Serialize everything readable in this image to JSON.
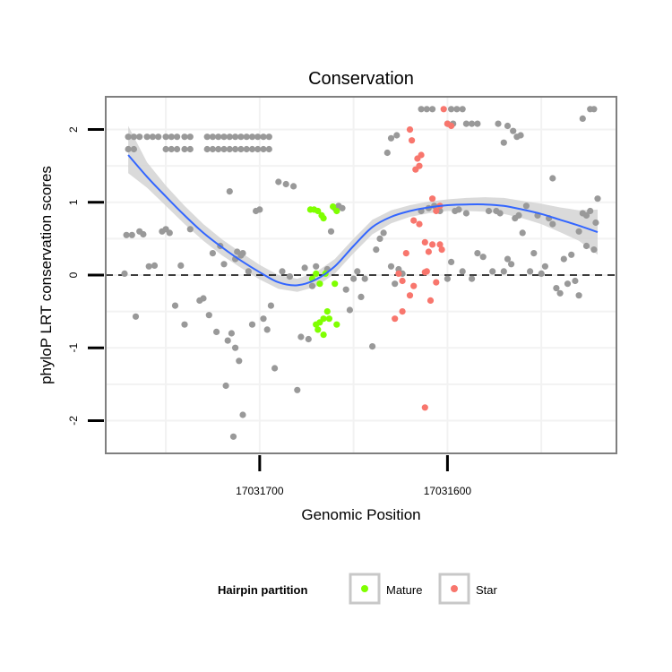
{
  "chart_data": {
    "type": "scatter",
    "title": "Conservation",
    "xlabel": "Genomic Position",
    "ylabel": "phyloP LRT conservation scores",
    "x_reversed": true,
    "xlim": [
      17031782,
      17031510
    ],
    "ylim": [
      -2.45,
      2.45
    ],
    "x_ticks": [
      {
        "value": 17031700,
        "label": "17031700"
      },
      {
        "value": 17031600,
        "label": "17031600"
      }
    ],
    "y_ticks": [
      {
        "value": -2,
        "label": "-2"
      },
      {
        "value": -1,
        "label": "-1"
      },
      {
        "value": 0,
        "label": "0"
      },
      {
        "value": 1,
        "label": "1"
      },
      {
        "value": 2,
        "label": "2"
      }
    ],
    "grid": true,
    "reference_line": {
      "y": 0,
      "style": "dashed"
    },
    "colors": {
      "other": "#999999",
      "Mature": "#7FFF00",
      "Star": "#F8766D",
      "smooth": "#3366FF",
      "band": "#D3D3D3",
      "panel_border": "#7F7F7F",
      "grid": "#F2F2F2"
    },
    "legend": {
      "title": "Hairpin partition",
      "position": "bottom",
      "entries": [
        {
          "name": "Mature",
          "color": "#7FFF00"
        },
        {
          "name": "Star",
          "color": "#F8766D"
        }
      ]
    },
    "smooth": {
      "x": [
        17031770,
        17031760,
        17031750,
        17031740,
        17031730,
        17031720,
        17031710,
        17031700,
        17031690,
        17031680,
        17031670,
        17031660,
        17031650,
        17031640,
        17031630,
        17031620,
        17031610,
        17031600,
        17031590,
        17031580,
        17031570,
        17031560,
        17031550,
        17031540,
        17031530,
        17031520
      ],
      "y": [
        1.65,
        1.35,
        1.08,
        0.82,
        0.58,
        0.38,
        0.2,
        0.04,
        -0.1,
        -0.14,
        -0.06,
        0.12,
        0.4,
        0.66,
        0.8,
        0.88,
        0.93,
        0.96,
        0.97,
        0.97,
        0.95,
        0.9,
        0.84,
        0.76,
        0.68,
        0.59
      ],
      "lower": [
        1.4,
        1.2,
        0.95,
        0.7,
        0.47,
        0.27,
        0.1,
        -0.06,
        -0.19,
        -0.23,
        -0.16,
        0.02,
        0.3,
        0.56,
        0.71,
        0.8,
        0.85,
        0.88,
        0.88,
        0.87,
        0.84,
        0.78,
        0.7,
        0.59,
        0.47,
        0.28
      ],
      "upper": [
        2.05,
        1.55,
        1.23,
        0.95,
        0.7,
        0.49,
        0.31,
        0.14,
        0.0,
        -0.05,
        0.04,
        0.22,
        0.5,
        0.76,
        0.89,
        0.96,
        1.01,
        1.04,
        1.06,
        1.07,
        1.06,
        1.02,
        0.98,
        0.93,
        0.89,
        0.9
      ]
    },
    "series": [
      {
        "name": "",
        "group": "other",
        "points": [
          [
            17031770,
            1.9
          ],
          [
            17031767,
            1.9
          ],
          [
            17031764,
            1.9
          ],
          [
            17031760,
            1.9
          ],
          [
            17031757,
            1.9
          ],
          [
            17031754,
            1.9
          ],
          [
            17031750,
            1.9
          ],
          [
            17031747,
            1.9
          ],
          [
            17031744,
            1.9
          ],
          [
            17031740,
            1.9
          ],
          [
            17031737,
            1.9
          ],
          [
            17031770,
            1.73
          ],
          [
            17031767,
            1.73
          ],
          [
            17031750,
            1.73
          ],
          [
            17031747,
            1.73
          ],
          [
            17031744,
            1.73
          ],
          [
            17031740,
            1.73
          ],
          [
            17031737,
            1.73
          ],
          [
            17031728,
            1.9
          ],
          [
            17031725,
            1.9
          ],
          [
            17031722,
            1.9
          ],
          [
            17031719,
            1.9
          ],
          [
            17031716,
            1.9
          ],
          [
            17031713,
            1.9
          ],
          [
            17031710,
            1.9
          ],
          [
            17031707,
            1.9
          ],
          [
            17031704,
            1.9
          ],
          [
            17031701,
            1.9
          ],
          [
            17031698,
            1.9
          ],
          [
            17031695,
            1.9
          ],
          [
            17031728,
            1.73
          ],
          [
            17031725,
            1.73
          ],
          [
            17031722,
            1.73
          ],
          [
            17031719,
            1.73
          ],
          [
            17031716,
            1.73
          ],
          [
            17031713,
            1.73
          ],
          [
            17031710,
            1.73
          ],
          [
            17031707,
            1.73
          ],
          [
            17031704,
            1.73
          ],
          [
            17031701,
            1.73
          ],
          [
            17031698,
            1.73
          ],
          [
            17031695,
            1.73
          ],
          [
            17031772,
            0.02
          ],
          [
            17031771,
            0.55
          ],
          [
            17031768,
            0.55
          ],
          [
            17031764,
            0.6
          ],
          [
            17031762,
            0.56
          ],
          [
            17031766,
            -0.57
          ],
          [
            17031759,
            0.12
          ],
          [
            17031756,
            0.13
          ],
          [
            17031752,
            0.6
          ],
          [
            17031750,
            0.63
          ],
          [
            17031748,
            0.58
          ],
          [
            17031745,
            -0.42
          ],
          [
            17031742,
            0.13
          ],
          [
            17031740,
            -0.68
          ],
          [
            17031737,
            0.63
          ],
          [
            17031732,
            -0.35
          ],
          [
            17031730,
            -0.32
          ],
          [
            17031727,
            -0.55
          ],
          [
            17031725,
            0.3
          ],
          [
            17031723,
            -0.78
          ],
          [
            17031721,
            0.4
          ],
          [
            17031719,
            0.15
          ],
          [
            17031717,
            -0.9
          ],
          [
            17031715,
            -0.8
          ],
          [
            17031713,
            -1.0
          ],
          [
            17031711,
            -1.18
          ],
          [
            17031709,
            -1.92
          ],
          [
            17031718,
            -1.52
          ],
          [
            17031714,
            -2.22
          ],
          [
            17031716,
            1.15
          ],
          [
            17031710,
            0.27
          ],
          [
            17031712,
            0.32
          ],
          [
            17031709,
            0.3
          ],
          [
            17031713,
            0.22
          ],
          [
            17031706,
            0.05
          ],
          [
            17031704,
            -0.68
          ],
          [
            17031702,
            0.88
          ],
          [
            17031700,
            0.9
          ],
          [
            17031698,
            -0.6
          ],
          [
            17031696,
            -0.75
          ],
          [
            17031694,
            -0.42
          ],
          [
            17031692,
            -1.28
          ],
          [
            17031690,
            1.28
          ],
          [
            17031688,
            0.05
          ],
          [
            17031686,
            1.25
          ],
          [
            17031684,
            -0.02
          ],
          [
            17031682,
            1.22
          ],
          [
            17031680,
            -1.58
          ],
          [
            17031678,
            -0.85
          ],
          [
            17031676,
            0.1
          ],
          [
            17031674,
            -0.88
          ],
          [
            17031672,
            -0.15
          ],
          [
            17031670,
            0.12
          ],
          [
            17031664,
            0.08
          ],
          [
            17031662,
            0.6
          ],
          [
            17031660,
            0.92
          ],
          [
            17031658,
            0.95
          ],
          [
            17031656,
            0.92
          ],
          [
            17031654,
            -0.2
          ],
          [
            17031652,
            -0.48
          ],
          [
            17031650,
            -0.05
          ],
          [
            17031648,
            0.05
          ],
          [
            17031646,
            -0.3
          ],
          [
            17031644,
            -0.05
          ],
          [
            17031640,
            -0.98
          ],
          [
            17031638,
            0.35
          ],
          [
            17031636,
            0.5
          ],
          [
            17031634,
            0.58
          ],
          [
            17031630,
            0.12
          ],
          [
            17031628,
            -0.12
          ],
          [
            17031626,
            0.08
          ],
          [
            17031632,
            1.68
          ],
          [
            17031630,
            1.88
          ],
          [
            17031627,
            1.92
          ],
          [
            17031624,
            0.02
          ],
          [
            17031614,
            2.28
          ],
          [
            17031611,
            2.28
          ],
          [
            17031608,
            2.28
          ],
          [
            17031598,
            2.28
          ],
          [
            17031595,
            2.28
          ],
          [
            17031592,
            2.28
          ],
          [
            17031600,
            2.08
          ],
          [
            17031597,
            2.08
          ],
          [
            17031590,
            2.08
          ],
          [
            17031587,
            2.08
          ],
          [
            17031584,
            2.08
          ],
          [
            17031573,
            2.08
          ],
          [
            17031568,
            2.05
          ],
          [
            17031570,
            1.82
          ],
          [
            17031565,
            1.98
          ],
          [
            17031563,
            1.9
          ],
          [
            17031561,
            1.92
          ],
          [
            17031614,
            0.88
          ],
          [
            17031610,
            0.92
          ],
          [
            17031607,
            0.95
          ],
          [
            17031604,
            0.88
          ],
          [
            17031600,
            -0.05
          ],
          [
            17031598,
            0.18
          ],
          [
            17031596,
            0.88
          ],
          [
            17031594,
            0.9
          ],
          [
            17031592,
            0.05
          ],
          [
            17031590,
            0.85
          ],
          [
            17031587,
            -0.05
          ],
          [
            17031584,
            0.3
          ],
          [
            17031581,
            0.25
          ],
          [
            17031578,
            0.88
          ],
          [
            17031576,
            0.05
          ],
          [
            17031574,
            0.88
          ],
          [
            17031572,
            0.85
          ],
          [
            17031570,
            0.05
          ],
          [
            17031568,
            0.22
          ],
          [
            17031566,
            0.15
          ],
          [
            17031564,
            0.78
          ],
          [
            17031562,
            0.82
          ],
          [
            17031560,
            0.58
          ],
          [
            17031558,
            0.95
          ],
          [
            17031556,
            0.05
          ],
          [
            17031554,
            0.3
          ],
          [
            17031552,
            0.82
          ],
          [
            17031550,
            0.02
          ],
          [
            17031548,
            0.12
          ],
          [
            17031546,
            0.78
          ],
          [
            17031544,
            0.7
          ],
          [
            17031542,
            -0.18
          ],
          [
            17031540,
            -0.25
          ],
          [
            17031538,
            0.22
          ],
          [
            17031536,
            -0.12
          ],
          [
            17031534,
            0.28
          ],
          [
            17031532,
            -0.08
          ],
          [
            17031530,
            -0.28
          ],
          [
            17031528,
            0.85
          ],
          [
            17031526,
            0.4
          ],
          [
            17031524,
            0.88
          ],
          [
            17031522,
            0.35
          ],
          [
            17031526,
            0.82
          ],
          [
            17031520,
            1.05
          ],
          [
            17031521,
            0.72
          ],
          [
            17031530,
            0.6
          ],
          [
            17031544,
            1.33
          ],
          [
            17031528,
            2.15
          ],
          [
            17031524,
            2.28
          ],
          [
            17031522,
            2.28
          ]
        ]
      },
      {
        "name": "Mature",
        "group": "Mature",
        "points": [
          [
            17031673,
            0.9
          ],
          [
            17031671,
            0.9
          ],
          [
            17031669,
            0.88
          ],
          [
            17031667,
            0.82
          ],
          [
            17031666,
            0.78
          ],
          [
            17031661,
            0.94
          ],
          [
            17031659,
            0.88
          ],
          [
            17031672,
            -0.05
          ],
          [
            17031670,
            0.02
          ],
          [
            17031668,
            -0.12
          ],
          [
            17031665,
            0.02
          ],
          [
            17031660,
            -0.12
          ],
          [
            17031670,
            -0.68
          ],
          [
            17031668,
            -0.65
          ],
          [
            17031666,
            -0.6
          ],
          [
            17031664,
            -0.5
          ],
          [
            17031663,
            -0.6
          ],
          [
            17031666,
            -0.82
          ],
          [
            17031669,
            -0.75
          ],
          [
            17031659,
            -0.68
          ]
        ]
      },
      {
        "name": "Star",
        "group": "Star",
        "points": [
          [
            17031602,
            2.28
          ],
          [
            17031600,
            2.08
          ],
          [
            17031598,
            2.05
          ],
          [
            17031620,
            2.0
          ],
          [
            17031619,
            1.85
          ],
          [
            17031616,
            1.6
          ],
          [
            17031614,
            1.65
          ],
          [
            17031615,
            1.5
          ],
          [
            17031617,
            1.45
          ],
          [
            17031608,
            1.05
          ],
          [
            17031604,
            0.95
          ],
          [
            17031606,
            0.88
          ],
          [
            17031618,
            0.75
          ],
          [
            17031615,
            0.7
          ],
          [
            17031612,
            0.45
          ],
          [
            17031604,
            0.42
          ],
          [
            17031622,
            0.3
          ],
          [
            17031610,
            0.32
          ],
          [
            17031608,
            0.42
          ],
          [
            17031603,
            0.35
          ],
          [
            17031624,
            -0.08
          ],
          [
            17031626,
            0.02
          ],
          [
            17031618,
            -0.15
          ],
          [
            17031620,
            -0.28
          ],
          [
            17031612,
            0.04
          ],
          [
            17031606,
            -0.1
          ],
          [
            17031609,
            -0.35
          ],
          [
            17031624,
            -0.5
          ],
          [
            17031628,
            -0.6
          ],
          [
            17031612,
            -1.82
          ],
          [
            17031611,
            0.05
          ]
        ]
      }
    ]
  }
}
